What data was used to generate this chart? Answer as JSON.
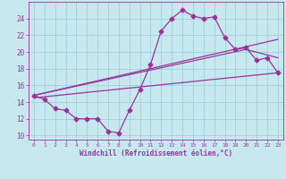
{
  "xlabel": "Windchill (Refroidissement éolien,°C)",
  "xlim": [
    -0.5,
    23.5
  ],
  "ylim": [
    9.5,
    26.0
  ],
  "xticks": [
    0,
    1,
    2,
    3,
    4,
    5,
    6,
    7,
    8,
    9,
    10,
    11,
    12,
    13,
    14,
    15,
    16,
    17,
    18,
    19,
    20,
    21,
    22,
    23
  ],
  "yticks": [
    10,
    12,
    14,
    16,
    18,
    20,
    22,
    24
  ],
  "bg_color": "#c8e8f0",
  "grid_color": "#99ccdd",
  "line_color": "#993399",
  "line1_x": [
    0,
    1,
    2,
    3,
    4,
    5,
    6,
    7,
    8,
    9,
    10,
    11,
    12,
    13,
    14,
    15,
    16,
    17,
    18,
    19,
    20,
    21,
    22,
    23
  ],
  "line1_y": [
    14.8,
    14.3,
    13.2,
    13.0,
    12.0,
    12.0,
    12.0,
    10.5,
    10.3,
    13.0,
    15.5,
    18.5,
    22.5,
    24.0,
    25.0,
    24.3,
    24.0,
    24.2,
    21.7,
    20.3,
    20.5,
    19.0,
    19.3,
    17.5
  ],
  "line2_x": [
    0,
    23
  ],
  "line2_y": [
    14.8,
    21.5
  ],
  "line3_x": [
    0,
    20,
    23
  ],
  "line3_y": [
    14.8,
    20.3,
    19.3
  ],
  "line4_x": [
    0,
    23
  ],
  "line4_y": [
    14.5,
    17.5
  ],
  "markersize": 2.5,
  "linewidth": 0.9
}
